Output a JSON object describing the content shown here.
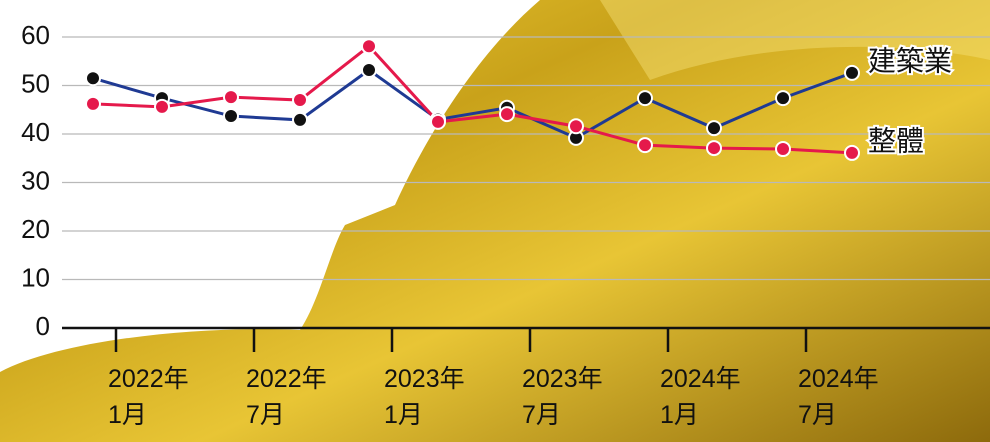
{
  "chart_data": {
    "type": "line",
    "x": [
      "2021-12",
      "2022-03",
      "2022-06",
      "2022-09",
      "2022-12",
      "2023-03",
      "2023-06",
      "2023-09",
      "2023-12",
      "2024-03",
      "2024-06",
      "2024-09"
    ],
    "series": [
      {
        "name": "建築業",
        "color": "#1f3a93",
        "marker_color": "#111111",
        "values": [
          51.5,
          47.4,
          43.7,
          42.9,
          53.2,
          43.0,
          45.4,
          39.2,
          47.4,
          41.2,
          47.4,
          52.6
        ]
      },
      {
        "name": "整體",
        "color": "#e5194b",
        "marker_color": "#e5194b",
        "values": [
          46.2,
          45.6,
          47.6,
          47.0,
          58.1,
          42.5,
          44.1,
          41.6,
          37.7,
          37.1,
          36.9,
          36.1
        ]
      }
    ],
    "xlim": [
      "2021-11",
      "2025-03"
    ],
    "xticks": [
      {
        "value": "2022-01",
        "label": "2022年\n1月"
      },
      {
        "value": "2022-07",
        "label": "2022年\n7月"
      },
      {
        "value": "2023-01",
        "label": "2023年\n1月"
      },
      {
        "value": "2023-07",
        "label": "2023年\n7月"
      },
      {
        "value": "2024-01",
        "label": "2024年\n1月"
      },
      {
        "value": "2024-07",
        "label": "2024年\n7月"
      }
    ],
    "ylim": [
      0,
      60
    ],
    "yticks": [
      0,
      10,
      20,
      30,
      40,
      50,
      60
    ],
    "grid": true
  }
}
